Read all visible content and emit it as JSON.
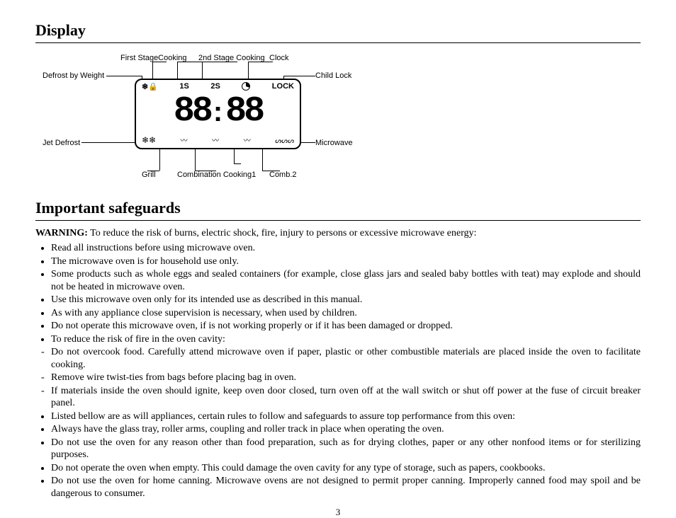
{
  "sections": {
    "display_heading": "Display",
    "safeguards_heading": "Important safeguards"
  },
  "diagram": {
    "labels": {
      "defrost_by_weight": "Defrost by Weight",
      "first_stage": "First StageCooking",
      "second_stage": "2nd Stage Cooking",
      "clock": "Clock",
      "child_lock": "Child Lock",
      "jet_defrost": "Jet Defrost",
      "microwave": "Microwave",
      "grill": "Grill",
      "combination1": "Combination Cooking1",
      "comb2": "Comb.2"
    },
    "top_row": {
      "defrost_weight_icon": "❄🔒",
      "s1": "1S",
      "s2": "2S",
      "clock_icon": "●",
      "lock_text": "LOCK"
    },
    "digits": "88:88",
    "bottom_row": {
      "jet_icon": "❄❄",
      "grill_icon": "〰",
      "comb1_icon": "〰",
      "comb2_icon": "〰",
      "micro_icon": "ᔕᔕᔕ"
    }
  },
  "warning_prefix": "WARNING:",
  "warning_text": " To reduce the risk of burns, electric shock, fire, injury to persons or excessive microwave energy:",
  "bullets": [
    {
      "t": "Read all instructions before using microwave oven."
    },
    {
      "t": "The microwave oven is for household use only."
    },
    {
      "t": "Some products such as whole eggs and sealed containers (for example, close glass jars and sealed baby bottles with teat) may explode and should not be heated in microwave oven."
    },
    {
      "t": "Use this microwave oven only for its intended use as described in this manual."
    },
    {
      "t": "As with any appliance close supervision is necessary, when used by children."
    },
    {
      "t": "Do not operate this microwave oven, if is not working properly or if it has been damaged or dropped."
    },
    {
      "t": "To reduce the risk of fire in the oven cavity:"
    },
    {
      "t": "Do not overcook food. Carefully attend microwave oven if paper, plastic or other combustible materials are placed inside the oven to facilitate cooking.",
      "dash": true
    },
    {
      "t": "Remove wire twist-ties from bags before placing bag in oven.",
      "dash": true
    },
    {
      "t": "If materials inside the oven should ignite, keep oven door closed, turn oven off at the wall switch or shut off power at the fuse of circuit breaker panel.",
      "dash": true
    },
    {
      "t": "Listed bellow are as will appliances, certain rules to follow and safeguards to assure top performance from this oven:"
    },
    {
      "t": "Always have the glass tray, roller arms, coupling and roller track in place when operating the oven."
    },
    {
      "t": "Do not use the oven for any reason other than food preparation, such as for drying clothes, paper or any other nonfood items or for sterilizing purposes."
    },
    {
      "t": "Do not operate the oven when empty. This could damage the oven cavity for any type of storage, such as papers, cookbooks."
    },
    {
      "t": "Do not use the oven for home canning. Microwave ovens are not designed to permit proper canning. Improperly canned food may spoil and be dangerous to consumer."
    }
  ],
  "page_number": "3"
}
